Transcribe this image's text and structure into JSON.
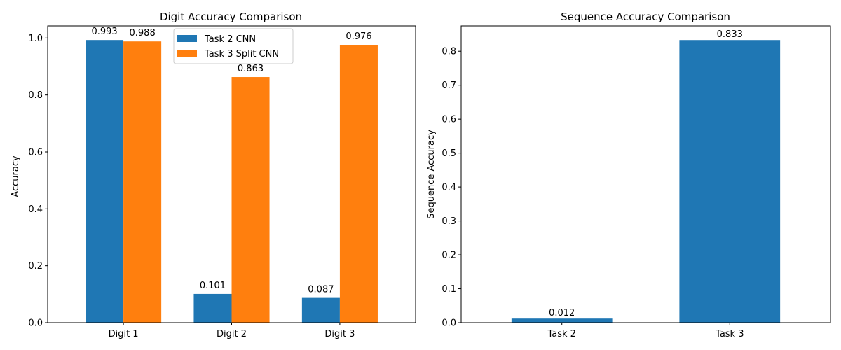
{
  "chart_data": [
    {
      "type": "bar",
      "title": "Digit Accuracy Comparison",
      "xlabel": "",
      "ylabel": "Accuracy",
      "categories": [
        "Digit 1",
        "Digit 2",
        "Digit 3"
      ],
      "series": [
        {
          "name": "Task 2 CNN",
          "color": "#1f77b4",
          "values": [
            0.993,
            0.101,
            0.087
          ],
          "labels": [
            "0.993",
            "0.101",
            "0.087"
          ]
        },
        {
          "name": "Task 3 Split CNN",
          "color": "#ff7f0e",
          "values": [
            0.988,
            0.863,
            0.976
          ],
          "labels": [
            "0.988",
            "0.863",
            "0.976"
          ]
        }
      ],
      "ylim": [
        0,
        1.0426
      ],
      "yticks": [
        0.0,
        0.2,
        0.4,
        0.6,
        0.8,
        1.0
      ],
      "ytick_labels": [
        "0.0",
        "0.2",
        "0.4",
        "0.6",
        "0.8",
        "1.0"
      ],
      "legend": "top-center",
      "grid": false
    },
    {
      "type": "bar",
      "title": "Sequence Accuracy Comparison",
      "xlabel": "",
      "ylabel": "Sequence Accuracy",
      "categories": [
        "Task 2",
        "Task 3"
      ],
      "series": [
        {
          "color": "#1f77b4",
          "values": [
            0.012,
            0.833
          ],
          "labels": [
            "0.012",
            "0.833"
          ]
        }
      ],
      "ylim": [
        0,
        0.8747
      ],
      "yticks": [
        0.0,
        0.1,
        0.2,
        0.3,
        0.4,
        0.5,
        0.6,
        0.7,
        0.8
      ],
      "ytick_labels": [
        "0.0",
        "0.1",
        "0.2",
        "0.3",
        "0.4",
        "0.5",
        "0.6",
        "0.7",
        "0.8"
      ],
      "grid": false
    }
  ]
}
